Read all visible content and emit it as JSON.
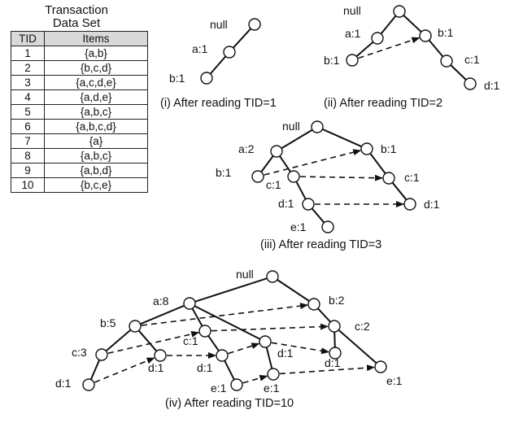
{
  "table": {
    "title_line1": "Transaction",
    "title_line2": "Data Set",
    "header_tid": "TID",
    "header_items": "Items",
    "rows": [
      {
        "tid": "1",
        "items": "{a,b}"
      },
      {
        "tid": "2",
        "items": "{b,c,d}"
      },
      {
        "tid": "3",
        "items": "{a,c,d,e}"
      },
      {
        "tid": "4",
        "items": "{a,d,e}"
      },
      {
        "tid": "5",
        "items": "{a,b,c}"
      },
      {
        "tid": "6",
        "items": "{a,b,c,d}"
      },
      {
        "tid": "7",
        "items": "{a}"
      },
      {
        "tid": "8",
        "items": "{a,b,c}"
      },
      {
        "tid": "9",
        "items": "{a,b,d}"
      },
      {
        "tid": "10",
        "items": "{b,c,e}"
      }
    ]
  },
  "diagrams": [
    {
      "caption": "(i) After reading TID=1",
      "nodes": [
        {
          "id": "root",
          "label": "null"
        },
        {
          "id": "a",
          "label": "a:1"
        },
        {
          "id": "ab",
          "label": "b:1"
        }
      ],
      "edges": [
        [
          "root",
          "a"
        ],
        [
          "a",
          "ab"
        ]
      ],
      "links": []
    },
    {
      "caption": "(ii) After reading TID=2",
      "nodes": [
        {
          "id": "root",
          "label": "null"
        },
        {
          "id": "a",
          "label": "a:1"
        },
        {
          "id": "ab",
          "label": "b:1"
        },
        {
          "id": "b",
          "label": "b:1"
        },
        {
          "id": "bc",
          "label": "c:1"
        },
        {
          "id": "bcd",
          "label": "d:1"
        }
      ],
      "edges": [
        [
          "root",
          "a"
        ],
        [
          "a",
          "ab"
        ],
        [
          "root",
          "b"
        ],
        [
          "b",
          "bc"
        ],
        [
          "bc",
          "bcd"
        ]
      ],
      "links": [
        [
          "ab",
          "b"
        ]
      ]
    },
    {
      "caption": "(iii) After reading TID=3",
      "nodes": [
        {
          "id": "root",
          "label": "null"
        },
        {
          "id": "a",
          "label": "a:2"
        },
        {
          "id": "ab",
          "label": "b:1"
        },
        {
          "id": "ac",
          "label": "c:1"
        },
        {
          "id": "acd",
          "label": "d:1"
        },
        {
          "id": "acde",
          "label": "e:1"
        },
        {
          "id": "b",
          "label": "b:1"
        },
        {
          "id": "bc",
          "label": "c:1"
        },
        {
          "id": "bcd",
          "label": "d:1"
        }
      ],
      "edges": [
        [
          "root",
          "a"
        ],
        [
          "a",
          "ab"
        ],
        [
          "a",
          "ac"
        ],
        [
          "ac",
          "acd"
        ],
        [
          "acd",
          "acde"
        ],
        [
          "root",
          "b"
        ],
        [
          "b",
          "bc"
        ],
        [
          "bc",
          "bcd"
        ]
      ],
      "links": [
        [
          "ab",
          "b"
        ],
        [
          "ac",
          "bc"
        ],
        [
          "acd",
          "bcd"
        ]
      ]
    },
    {
      "caption": "(iv) After reading TID=10",
      "nodes": [
        {
          "id": "root",
          "label": "null"
        },
        {
          "id": "a",
          "label": "a:8"
        },
        {
          "id": "ab",
          "label": "b:5"
        },
        {
          "id": "abc",
          "label": "c:3"
        },
        {
          "id": "abcd",
          "label": "d:1"
        },
        {
          "id": "abd",
          "label": "d:1"
        },
        {
          "id": "ac",
          "label": "c:1"
        },
        {
          "id": "acd",
          "label": "d:1"
        },
        {
          "id": "acde",
          "label": "e:1"
        },
        {
          "id": "ad",
          "label": "d:1"
        },
        {
          "id": "ade",
          "label": "e:1"
        },
        {
          "id": "b",
          "label": "b:2"
        },
        {
          "id": "bc",
          "label": "c:2"
        },
        {
          "id": "bcd",
          "label": "d:1"
        },
        {
          "id": "bce",
          "label": "e:1"
        }
      ],
      "edges": [
        [
          "root",
          "a"
        ],
        [
          "a",
          "ab"
        ],
        [
          "ab",
          "abc"
        ],
        [
          "abc",
          "abcd"
        ],
        [
          "ab",
          "abd"
        ],
        [
          "a",
          "ac"
        ],
        [
          "ac",
          "acd"
        ],
        [
          "acd",
          "acde"
        ],
        [
          "a",
          "ad"
        ],
        [
          "ad",
          "ade"
        ],
        [
          "root",
          "b"
        ],
        [
          "b",
          "bc"
        ],
        [
          "bc",
          "bcd"
        ],
        [
          "bc",
          "bce"
        ]
      ],
      "links": [
        [
          "ab",
          "b"
        ],
        [
          "abc",
          "ac"
        ],
        [
          "ac",
          "bc"
        ],
        [
          "abcd",
          "abd"
        ],
        [
          "abd",
          "acd"
        ],
        [
          "acd",
          "ad"
        ],
        [
          "ad",
          "bcd"
        ],
        [
          "acde",
          "ade"
        ],
        [
          "ade",
          "bce"
        ]
      ]
    }
  ]
}
